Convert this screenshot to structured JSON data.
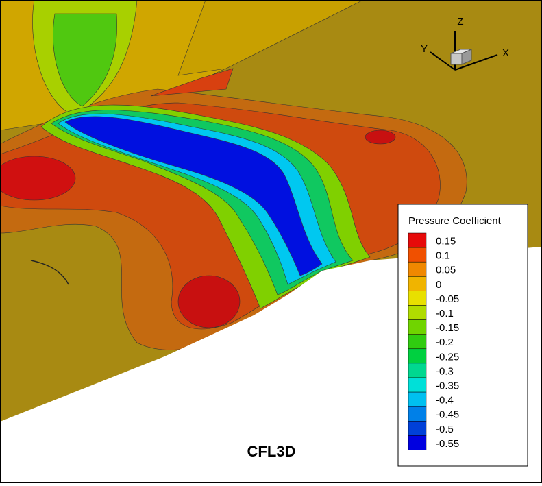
{
  "caption": "CFL3D",
  "axes_triad": {
    "x": "X",
    "y": "Y",
    "z": "Z"
  },
  "legend": {
    "title": "Pressure Coefficient",
    "levels": [
      {
        "label": "0.15",
        "color": "#e60a0a"
      },
      {
        "label": "0.1",
        "color": "#f05000"
      },
      {
        "label": "0.05",
        "color": "#f08800"
      },
      {
        "label": "0",
        "color": "#f0b400"
      },
      {
        "label": "-0.05",
        "color": "#e8e000"
      },
      {
        "label": "-0.1",
        "color": "#b0dc00"
      },
      {
        "label": "-0.15",
        "color": "#70d400"
      },
      {
        "label": "-0.2",
        "color": "#30cc10"
      },
      {
        "label": "-0.25",
        "color": "#00d040"
      },
      {
        "label": "-0.3",
        "color": "#00d890"
      },
      {
        "label": "-0.35",
        "color": "#00e0d8"
      },
      {
        "label": "-0.4",
        "color": "#00c0f0"
      },
      {
        "label": "-0.45",
        "color": "#0080e8"
      },
      {
        "label": "-0.5",
        "color": "#0040d8"
      },
      {
        "label": "-0.55",
        "color": "#0000e0"
      }
    ]
  }
}
